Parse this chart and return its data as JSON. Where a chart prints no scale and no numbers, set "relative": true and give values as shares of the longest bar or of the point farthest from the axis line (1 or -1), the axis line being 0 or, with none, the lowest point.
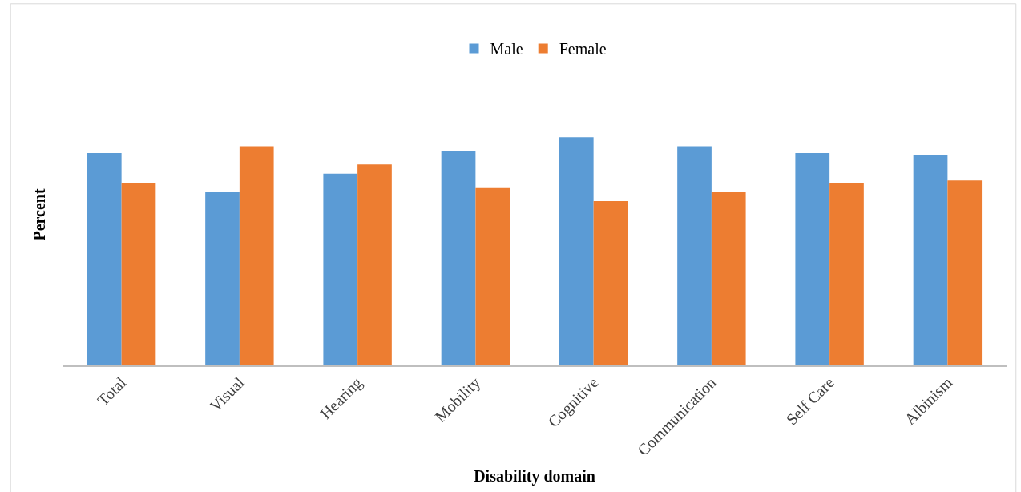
{
  "chart_data": {
    "type": "bar",
    "relative": true,
    "xlabel": "Disability domain",
    "ylabel": "Percent",
    "categories": [
      "Total",
      "Visual",
      "Hearing",
      "Mobility",
      "Cognitive",
      "Communication",
      "Self Care",
      "Albinism"
    ],
    "series": [
      {
        "name": "Male",
        "color": "#5b9bd5",
        "values": [
          0.93,
          0.76,
          0.84,
          0.94,
          1,
          0.96,
          0.93,
          0.92
        ]
      },
      {
        "name": "Female",
        "color": "#ed7d31",
        "values": [
          0.8,
          0.96,
          0.88,
          0.78,
          0.72,
          0.76,
          0.8,
          0.81
        ]
      }
    ],
    "legend": "top"
  }
}
